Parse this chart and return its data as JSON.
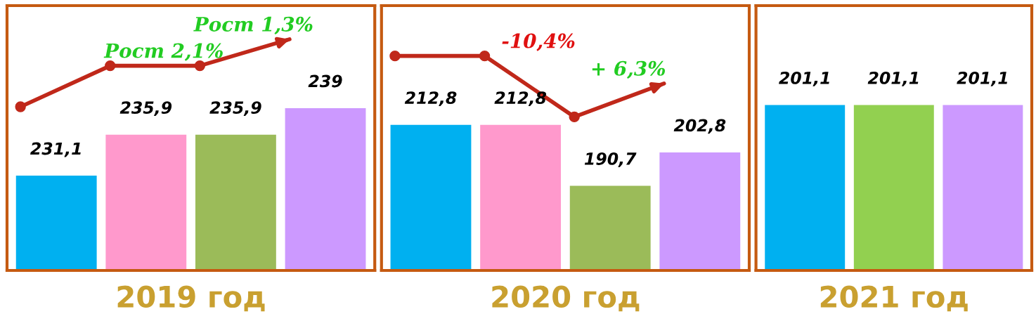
{
  "chart_data": [
    {
      "type": "bar",
      "xlabel": "2019 год",
      "categories": [
        null,
        null,
        null,
        null
      ],
      "values": [
        231.1,
        235.9,
        235.9,
        239
      ],
      "value_labels": [
        "231,1",
        "235,9",
        "235,9",
        "239"
      ],
      "colors": [
        "#00b0f0",
        "#ff99cc",
        "#9bbb59",
        "#cc99ff"
      ],
      "ylim": [
        220,
        251
      ],
      "annotations": [
        "Рост 2,1%",
        "Рост 1,3%"
      ]
    },
    {
      "type": "bar",
      "xlabel": "2020 год",
      "categories": [
        null,
        null,
        null,
        null
      ],
      "values": [
        212.8,
        212.8,
        190.7,
        202.8
      ],
      "value_labels": [
        "212,8",
        "212,8",
        "190,7",
        "202,8"
      ],
      "colors": [
        "#00b0f0",
        "#ff99cc",
        "#9bbb59",
        "#cc99ff"
      ],
      "ylim": [
        160,
        256
      ],
      "annotations": [
        "-10,4%",
        "+ 6,3%"
      ]
    },
    {
      "type": "bar",
      "xlabel": "2021 год",
      "categories": [
        null,
        null,
        null
      ],
      "values": [
        201.1,
        201.1,
        201.1
      ],
      "value_labels": [
        "201,1",
        "201,1",
        "201,1"
      ],
      "colors": [
        "#00b0f0",
        "#92d050",
        "#cc99ff"
      ]
    }
  ]
}
